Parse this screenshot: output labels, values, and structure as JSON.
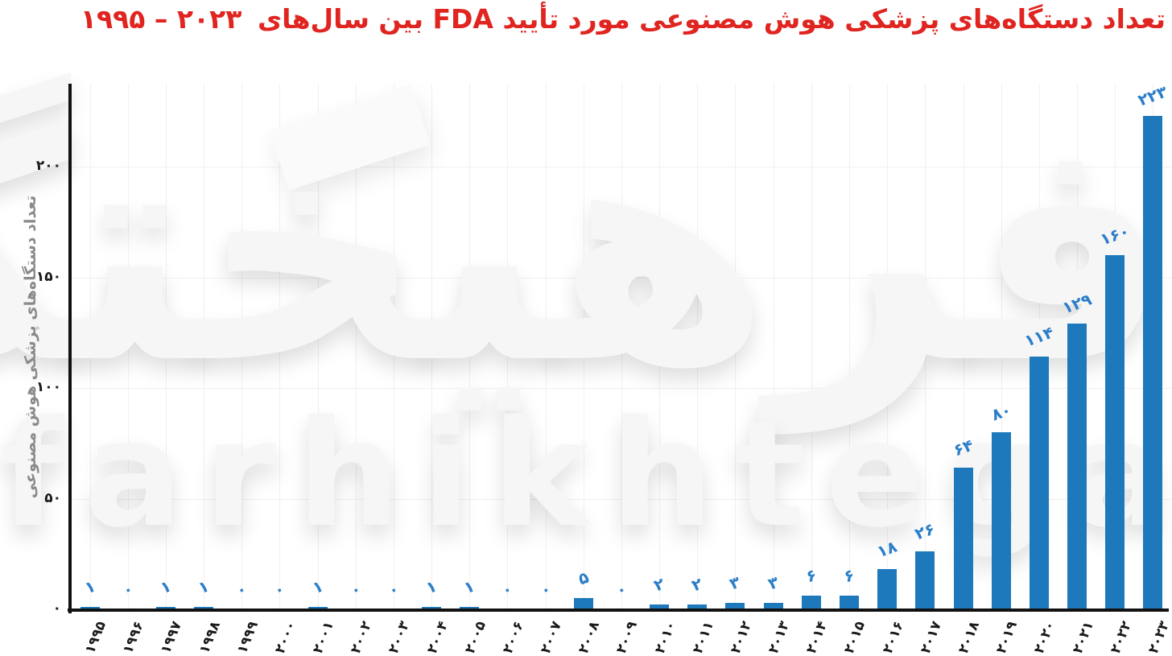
{
  "title": {
    "main": "تعداد دستگاه‌های پزشکی هوش مصنوعی مورد تأیید FDA بین سال‌های",
    "years_range": "۱۹۹۵ – ۲۰۲۳",
    "color": "#e02420"
  },
  "watermark": {
    "persian": "فرهیختگان",
    "latin": "farhikhtegan"
  },
  "chart_data": {
    "type": "bar",
    "title": "تعداد دستگاه‌های پزشکی هوش مصنوعی مورد تأیید FDA بین سال‌های ۱۹۹۵ تا ۲۰۲۳",
    "xlabel": "",
    "ylabel": "تعداد دستگاه‌های پزشکی هوش مصنوعی",
    "categories": [
      1995,
      1996,
      1997,
      1998,
      1999,
      2000,
      2001,
      2002,
      2003,
      2004,
      2005,
      2006,
      2007,
      2008,
      2009,
      2010,
      2011,
      2012,
      2013,
      2014,
      2015,
      2016,
      2017,
      2018,
      2019,
      2020,
      2021,
      2022,
      2023
    ],
    "categories_display": [
      "۱۹۹۵",
      "۱۹۹۶",
      "۱۹۹۷",
      "۱۹۹۸",
      "۱۹۹۹",
      "۲۰۰۰",
      "۲۰۰۱",
      "۲۰۰۲",
      "۲۰۰۳",
      "۲۰۰۴",
      "۲۰۰۵",
      "۲۰۰۶",
      "۲۰۰۷",
      "۲۰۰۸",
      "۲۰۰۹",
      "۲۰۱۰",
      "۲۰۱۱",
      "۲۰۱۲",
      "۲۰۱۳",
      "۲۰۱۴",
      "۲۰۱۵",
      "۲۰۱۶",
      "۲۰۱۷",
      "۲۰۱۸",
      "۲۰۱۹",
      "۲۰۲۰",
      "۲۰۲۱",
      "۲۰۲۲",
      "۲۰۲۳"
    ],
    "values": [
      1,
      0,
      1,
      1,
      0,
      0,
      1,
      0,
      0,
      1,
      1,
      0,
      0,
      5,
      0,
      2,
      2,
      3,
      3,
      6,
      6,
      18,
      26,
      64,
      80,
      114,
      129,
      160,
      223
    ],
    "value_labels_display": [
      "۱",
      "۰",
      "۱",
      "۱",
      "۰",
      "۰",
      "۱",
      "۰",
      "۰",
      "۱",
      "۱",
      "۰",
      "۰",
      "۵",
      "۰",
      "۲",
      "۲",
      "۳",
      "۳",
      "۶",
      "۶",
      "۱۸",
      "۲۶",
      "۶۴",
      "۸۰",
      "۱۱۴",
      "۱۲۹",
      "۱۶۰",
      "۲۲۳"
    ],
    "yticks": [
      0,
      50,
      100,
      150,
      200
    ],
    "ytick_labels": [
      "۰",
      "۵۰",
      "۱۰۰",
      "۱۵۰",
      "۲۰۰"
    ],
    "ylim": [
      0,
      236
    ],
    "grid": true,
    "legend_position": "none",
    "bar_color": "#1d79bb",
    "value_label_color": "#2b7ec9",
    "title_color": "#e02420",
    "grid_color": "#f3eff0",
    "axis_color": "#111111",
    "tick_label_color": "#1a1a1a",
    "ylabel_color": "#8a8a8a"
  }
}
